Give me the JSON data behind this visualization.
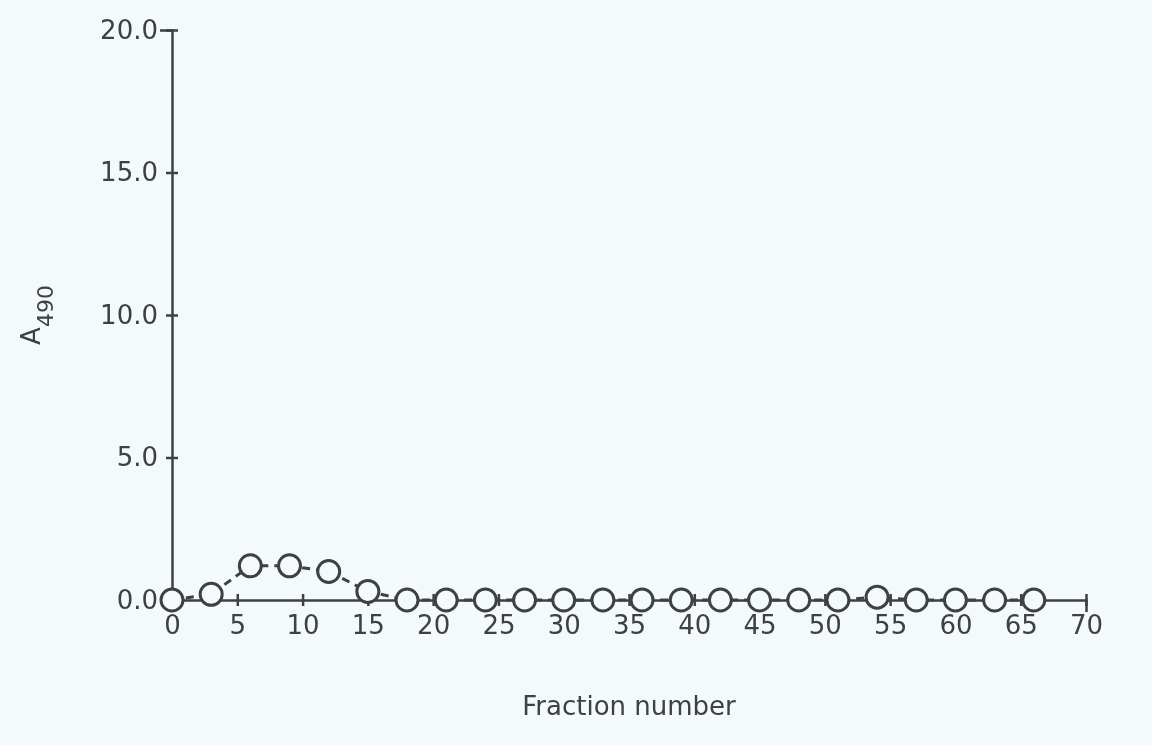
{
  "chart_data": {
    "type": "line",
    "xlabel": "Fraction number",
    "ylabel": "A$_{490}$",
    "x": [
      0,
      3,
      6,
      9,
      12,
      15,
      18,
      21,
      24,
      27,
      30,
      33,
      36,
      39,
      42,
      45,
      48,
      51,
      54,
      57,
      60,
      63,
      66
    ],
    "series": [
      {
        "color": "#3d4045",
        "values": [
          0,
          0.2,
          1.2,
          1.2,
          1.0,
          0.3,
          0,
          0,
          0,
          0,
          0,
          0,
          0,
          0,
          0,
          0,
          0,
          0,
          0.1,
          0,
          0,
          0,
          0
        ]
      }
    ],
    "xlim": [
      0,
      70
    ],
    "xticks": [
      0,
      5,
      10,
      15,
      20,
      25,
      30,
      35,
      40,
      45,
      50,
      55,
      60,
      65,
      70
    ],
    "ylim": [
      0,
      20
    ],
    "yticks": [
      {
        "value": 0,
        "label": "0.0"
      },
      {
        "value": 5,
        "label": "5.0"
      },
      {
        "value": 10,
        "label": "10.0"
      },
      {
        "value": 15,
        "label": "15.0"
      },
      {
        "value": 20,
        "label": "20.0"
      }
    ],
    "marker": "circle",
    "line_style": "dashed"
  }
}
